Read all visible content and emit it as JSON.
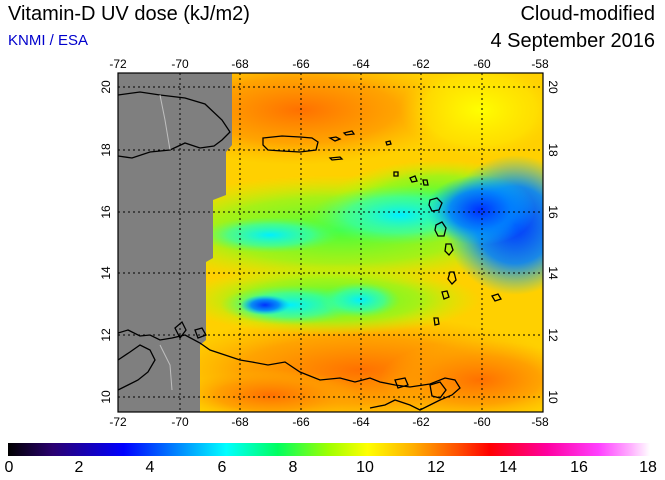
{
  "header": {
    "title": "Vitamin-D UV dose (kJ/m2)",
    "credit": "KNMI / ESA",
    "product_type": "Cloud-modified",
    "date": "4 September 2016"
  },
  "map": {
    "lon_ticks": [
      "-72",
      "-70",
      "-68",
      "-66",
      "-64",
      "-62",
      "-60",
      "-58"
    ],
    "lat_ticks": [
      "10",
      "12",
      "14",
      "16",
      "18",
      "20"
    ],
    "no_data_color": "#7f7f7f"
  },
  "colorbar": {
    "ticks": [
      "0",
      "2",
      "4",
      "6",
      "8",
      "10",
      "12",
      "14",
      "16",
      "18"
    ],
    "range": [
      0,
      18
    ],
    "colors": [
      "#000000",
      "#2a0070",
      "#0000ff",
      "#00a0ff",
      "#00ffff",
      "#00ff60",
      "#a0ff00",
      "#ffff00",
      "#ffb000",
      "#ff5000",
      "#ff0000",
      "#ff00a0",
      "#ff40ff",
      "#ffb0ff",
      "#ffffff"
    ]
  }
}
